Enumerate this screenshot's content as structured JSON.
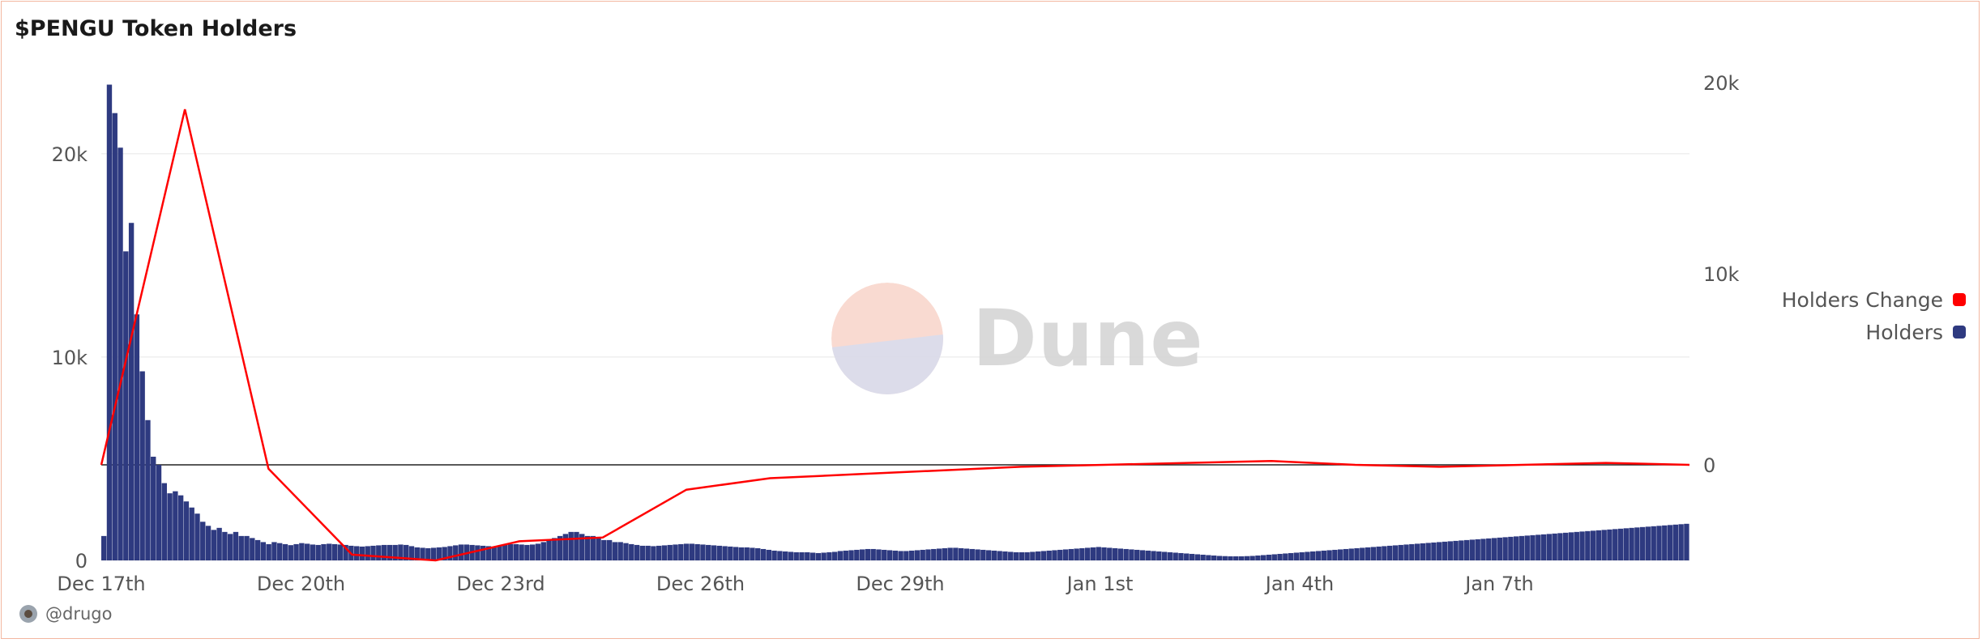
{
  "title": "$PENGU Token Holders",
  "author": "@drugo",
  "watermark": "Dune",
  "legend": [
    {
      "label": "Holders Change",
      "color": "#ff0000"
    },
    {
      "label": "Holders",
      "color": "#2e3a80"
    }
  ],
  "chart_data": {
    "type": "bar",
    "title": "$PENGU Token Holders",
    "x_range": [
      "Dec 17th",
      "Jan 9th"
    ],
    "x_ticks": [
      "Dec 17th",
      "Dec 20th",
      "Dec 23rd",
      "Dec 26th",
      "Dec 29th",
      "Jan 1st",
      "Jan 4th",
      "Jan 7th"
    ],
    "y_left": {
      "ticks": [
        "0",
        "10k",
        "20k"
      ],
      "values": [
        0,
        10000,
        20000
      ],
      "ylim": [
        0,
        23500
      ]
    },
    "y_right": {
      "ticks": [
        "0",
        "10k",
        "20k"
      ],
      "values": [
        0,
        10000,
        20000
      ],
      "ylim": [
        -5000,
        20000
      ]
    },
    "grid": true,
    "legend_position": "right",
    "series": [
      {
        "name": "Holders",
        "type": "bar",
        "color": "#2e3a80",
        "axis": "left",
        "values": [
          1200,
          23400,
          22000,
          20300,
          15200,
          16600,
          12100,
          9300,
          6900,
          5100,
          4700,
          3800,
          3300,
          3400,
          3200,
          2900,
          2600,
          2300,
          1900,
          1700,
          1500,
          1600,
          1400,
          1300,
          1400,
          1200,
          1200,
          1100,
          1000,
          900,
          800,
          900,
          850,
          800,
          750,
          800,
          850,
          820,
          780,
          760,
          800,
          820,
          800,
          780,
          760,
          720,
          700,
          680,
          700,
          720,
          740,
          760,
          760,
          760,
          780,
          760,
          700,
          640,
          620,
          600,
          620,
          640,
          660,
          700,
          740,
          780,
          780,
          760,
          740,
          720,
          700,
          680,
          720,
          760,
          800,
          800,
          780,
          760,
          780,
          820,
          900,
          1000,
          1100,
          1200,
          1300,
          1400,
          1400,
          1300,
          1200,
          1200,
          1100,
          1000,
          1000,
          900,
          900,
          850,
          800,
          760,
          720,
          720,
          700,
          720,
          740,
          760,
          780,
          800,
          820,
          820,
          800,
          780,
          760,
          740,
          720,
          700,
          680,
          660,
          640,
          640,
          620,
          600,
          560,
          520,
          480,
          460,
          440,
          420,
          400,
          400,
          400,
          380,
          360,
          380,
          400,
          420,
          460,
          480,
          500,
          520,
          540,
          560,
          560,
          540,
          520,
          500,
          480,
          460,
          460,
          480,
          500,
          520,
          540,
          560,
          580,
          600,
          620,
          620,
          600,
          580,
          560,
          540,
          520,
          500,
          480,
          460,
          440,
          420,
          400,
          400,
          400,
          420,
          440,
          460,
          480,
          500,
          520,
          540,
          560,
          580,
          600,
          620,
          640,
          660,
          640,
          620,
          600,
          580,
          560,
          540,
          520,
          500,
          480,
          460,
          440,
          420,
          400,
          380,
          360,
          340,
          320,
          300,
          280,
          260,
          240,
          220,
          210,
          200,
          200,
          200,
          210,
          220,
          240,
          260,
          280,
          300,
          320,
          340,
          360,
          380,
          400,
          420,
          440,
          460,
          480,
          500,
          520,
          540,
          560,
          580,
          600,
          620,
          640,
          660,
          680,
          700,
          720,
          740,
          760,
          780,
          800,
          820,
          840,
          860,
          880,
          900,
          920,
          940,
          960,
          980,
          1000,
          1020,
          1040,
          1060,
          1080,
          1100,
          1120,
          1140,
          1160,
          1180,
          1200,
          1220,
          1240,
          1260,
          1280,
          1300,
          1320,
          1340,
          1360,
          1380,
          1400,
          1420,
          1440,
          1460,
          1480,
          1500,
          1520,
          1540,
          1560,
          1580,
          1600,
          1620,
          1640,
          1660,
          1680,
          1700,
          1720,
          1740,
          1760,
          1780,
          1800
        ]
      },
      {
        "name": "Holders Change",
        "type": "line",
        "color": "#ff0000",
        "axis": "right",
        "values": [
          0,
          18600,
          -200,
          -4700,
          -5000,
          -4000,
          -3800,
          -1300,
          -700,
          -500,
          -300,
          -100,
          0,
          100,
          200,
          0,
          -100,
          0,
          100,
          0
        ]
      }
    ]
  }
}
